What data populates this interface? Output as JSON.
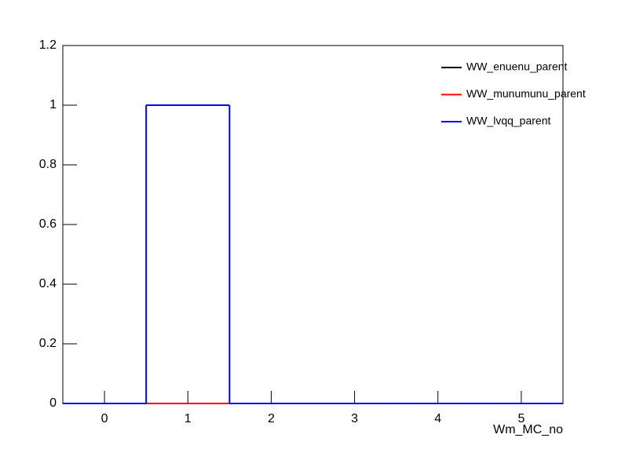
{
  "chart_data": {
    "type": "histogram",
    "x_label": "Wm_MC_no",
    "bins": [
      -0.5,
      0.5,
      1.5,
      2.5,
      3.5,
      4.5,
      5.5
    ],
    "series": [
      {
        "name": "WW_enuenu_parent",
        "color": "#000000",
        "values": [
          0,
          0,
          0,
          0,
          0,
          0
        ]
      },
      {
        "name": "WW_munumunu_parent",
        "color": "#ff0000",
        "values": [
          0,
          0,
          0,
          0,
          0,
          0
        ]
      },
      {
        "name": "WW_lvqq_parent",
        "color": "#0000ff",
        "values": [
          0,
          1,
          0,
          0,
          0,
          0
        ]
      }
    ],
    "xlim": [
      -0.5,
      5.5
    ],
    "ylim": [
      0,
      1.2
    ],
    "xticks": [
      0,
      1,
      2,
      3,
      4,
      5
    ],
    "yticks": [
      0,
      0.2,
      0.4,
      0.6,
      0.8,
      1,
      1.2
    ],
    "legend": "top-right",
    "grid": false
  }
}
